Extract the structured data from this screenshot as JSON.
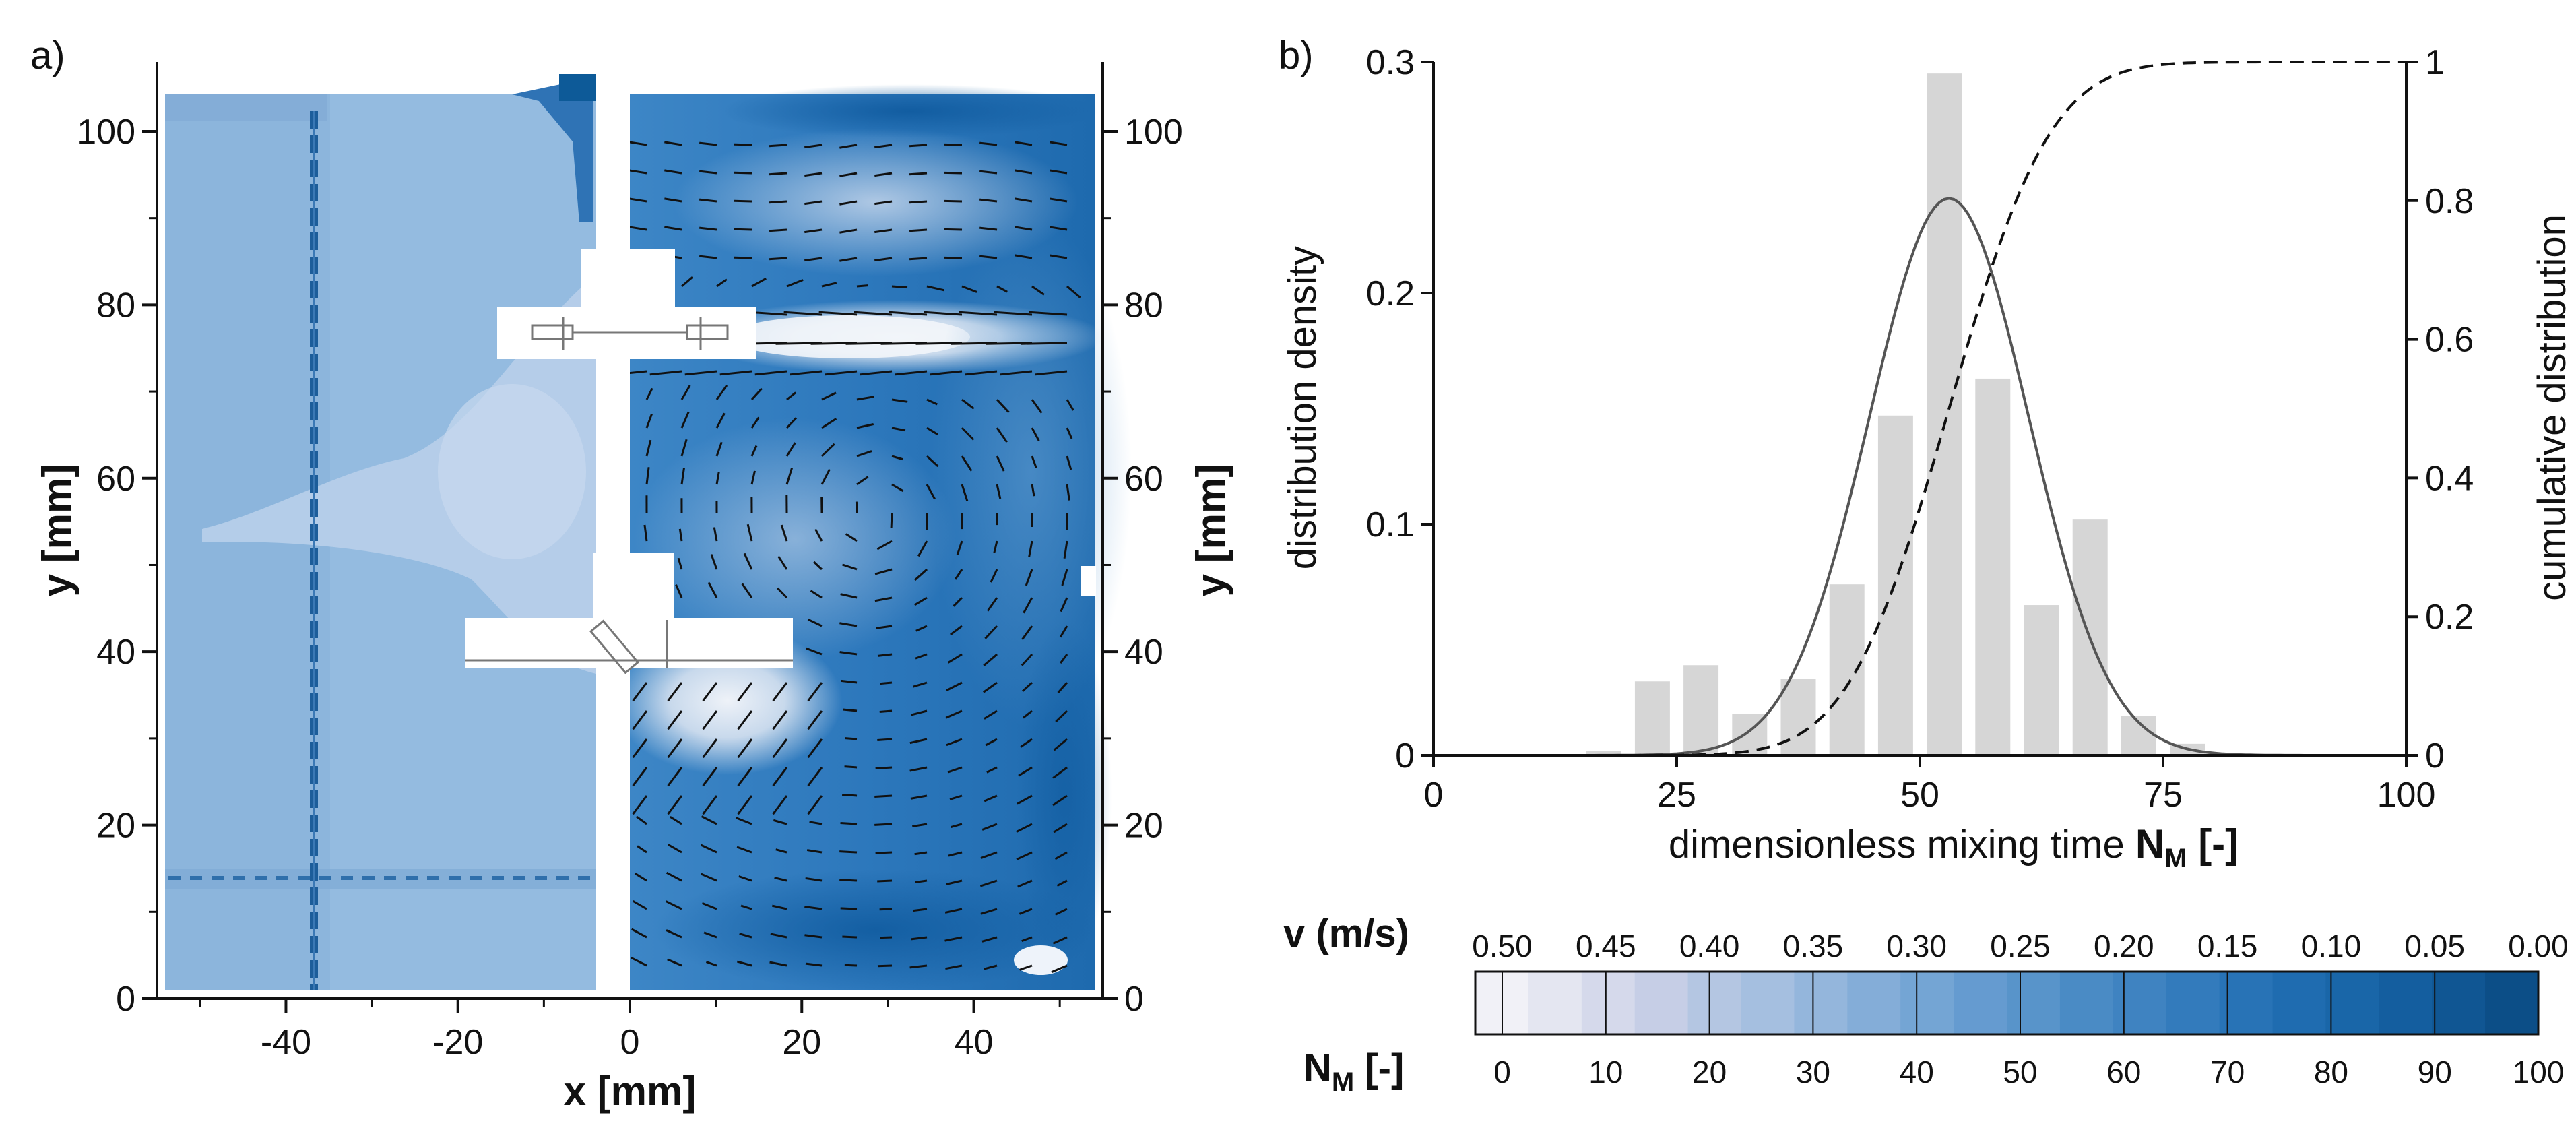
{
  "panel_a": {
    "label": "a)",
    "xlabel": "x [mm]",
    "ylabel": "y [mm]",
    "ylabel_right": "y [mm]"
  },
  "panel_b": {
    "label": "b)"
  },
  "colorbar": {
    "v_label": "v (m/s)",
    "nm_label_main": "N",
    "nm_label_sub": "M",
    "nm_label_unit": " [-]",
    "v_ticks": [
      "0.50",
      "0.45",
      "0.40",
      "0.35",
      "0.30",
      "0.25",
      "0.20",
      "0.15",
      "0.10",
      "0.05",
      "0.00"
    ],
    "nm_ticks": [
      "0",
      "10",
      "20",
      "30",
      "40",
      "50",
      "60",
      "70",
      "80",
      "90",
      "100"
    ],
    "colors": [
      "#f1f1f7",
      "#e4e6f1",
      "#d5d9eb",
      "#c6cee6",
      "#b4c6e2",
      "#a5bfe0",
      "#94b6dc",
      "#84add8",
      "#74a5d4",
      "#659bd0",
      "#5894ca",
      "#4a8bc5",
      "#3f83c1",
      "#337bbc",
      "#2873b6",
      "#1f6cb0",
      "#1966a8",
      "#145e9f",
      "#105693",
      "#0c4e87"
    ]
  },
  "chart_data": [
    {
      "type": "heatmap",
      "title": "",
      "xlabel": "x [mm]",
      "ylabel": "y [mm]",
      "xlim": [
        -55,
        55
      ],
      "ylim": [
        0,
        108
      ],
      "xticks": [
        -40,
        -20,
        0,
        20,
        40
      ],
      "yticks": [
        0,
        20,
        40,
        60,
        80,
        100
      ],
      "xtick_labels": [
        "-40",
        "-20",
        "0",
        "20",
        "40"
      ],
      "ytick_labels": [
        "0",
        "20",
        "40",
        "60",
        "80",
        "100"
      ],
      "left_half": "dimensionless mixing time N_M [-] field",
      "right_half": "velocity magnitude v (m/s) field with vectors"
    },
    {
      "type": "bar",
      "xlabel_main": "dimensionless mixing time ",
      "xlabel_sub": "M",
      "xlabel_sym": "N",
      "xlabel_unit": " [-]",
      "ylabel": "distribution density",
      "ylabel_right": "cumulative distribution",
      "xlim": [
        0,
        100
      ],
      "ylim": [
        0,
        0.3
      ],
      "ylim_right": [
        0,
        1
      ],
      "xticks": [
        0,
        25,
        50,
        75,
        100
      ],
      "yticks": [
        0,
        0.1,
        0.2,
        0.3
      ],
      "yticks_right": [
        0,
        0.2,
        0.4,
        0.6,
        0.8,
        1
      ],
      "xtick_labels": [
        "0",
        "25",
        "50",
        "75",
        "100"
      ],
      "ytick_labels": [
        "0",
        "0.1",
        "0.2",
        "0.3"
      ],
      "ytick_labels_right": [
        "0",
        "0.2",
        "0.4",
        "0.6",
        "0.8",
        "1"
      ],
      "bin_width": 5,
      "series": [
        {
          "name": "histogram",
          "x": [
            17.5,
            22.5,
            27.5,
            32.5,
            37.5,
            42.5,
            47.5,
            52.5,
            57.5,
            62.5,
            67.5,
            72.5,
            77.5
          ],
          "values": [
            0.002,
            0.032,
            0.039,
            0.018,
            0.033,
            0.074,
            0.147,
            0.295,
            0.163,
            0.065,
            0.102,
            0.017,
            0.005
          ]
        },
        {
          "name": "normal fit",
          "type": "line",
          "mean": 53,
          "peak": 0.241,
          "sd": 8.2
        },
        {
          "name": "cumulative distribution",
          "type": "line",
          "axis": "right",
          "mean": 53,
          "sd": 8.2
        }
      ]
    }
  ]
}
